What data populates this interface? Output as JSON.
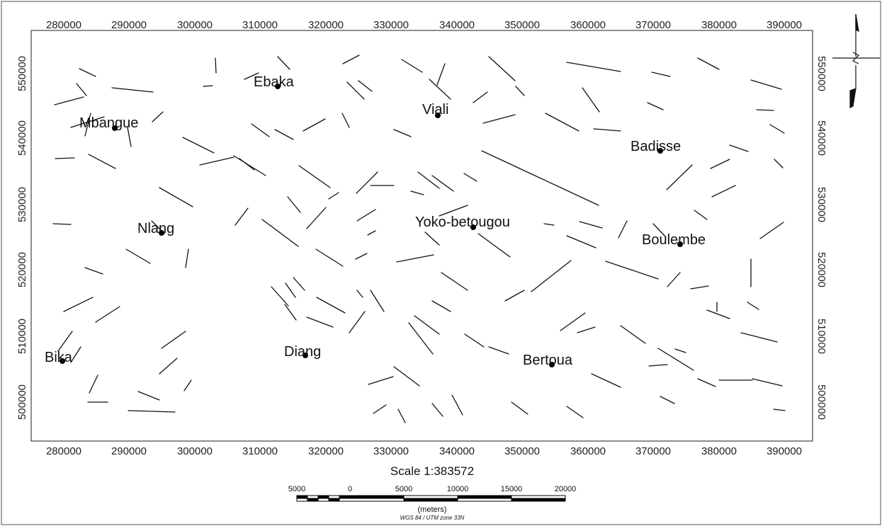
{
  "map": {
    "x_ticks": [
      "280000",
      "290000",
      "300000",
      "310000",
      "320000",
      "330000",
      "340000",
      "350000",
      "360000",
      "370000",
      "380000",
      "390000"
    ],
    "y_ticks": [
      "550000",
      "540000",
      "530000",
      "520000",
      "510000",
      "500000"
    ],
    "towns": [
      {
        "name": "Ebaka"
      },
      {
        "name": "Viali"
      },
      {
        "name": "Mbangue"
      },
      {
        "name": "Badisse"
      },
      {
        "name": "Nlang"
      },
      {
        "name": "Yoko-betougou"
      },
      {
        "name": "Boulembe"
      },
      {
        "name": "Bika"
      },
      {
        "name": "Diang"
      },
      {
        "name": "Bertoua"
      }
    ],
    "colors": {
      "lineament": "#111111",
      "frame": "#555555",
      "point": "#000000"
    },
    "north_arrow_icon": "north-arrow-icon"
  },
  "scale": {
    "title": "Scale 1:383572",
    "labels": [
      "5000",
      "0",
      "5000",
      "10000",
      "15000",
      "20000"
    ],
    "units": "(meters)",
    "crs": "WGS 84 / UTM zone 33N"
  }
}
